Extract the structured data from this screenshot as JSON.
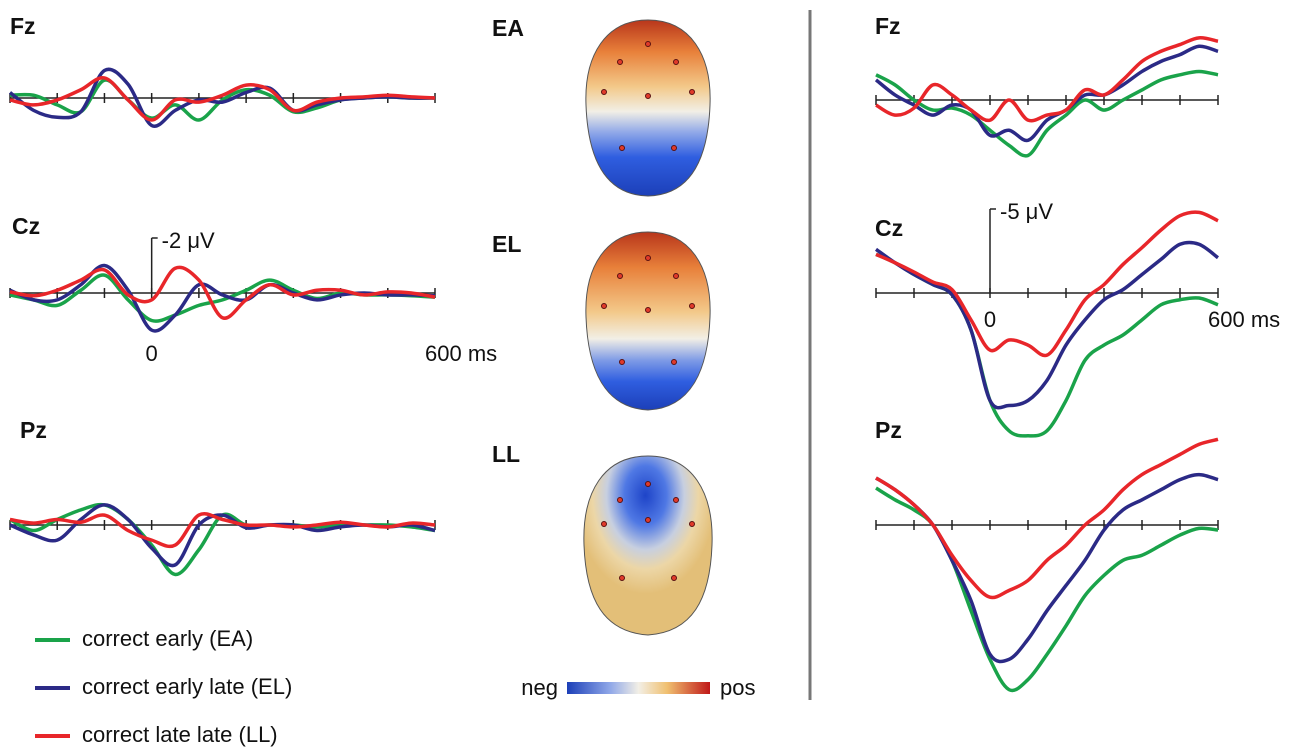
{
  "chart_data": [
    {
      "type": "line",
      "title": "Fz",
      "x": [
        -300,
        -250,
        -200,
        -150,
        -100,
        -50,
        0,
        50,
        100,
        150,
        200,
        250,
        300,
        350,
        400,
        450,
        500,
        550,
        600
      ],
      "xlim": [
        -300,
        600
      ],
      "xticks": [
        -300,
        -200,
        -100,
        0,
        100,
        200,
        300,
        400,
        500,
        600
      ],
      "ylim": [
        -3,
        3
      ],
      "y_inverted": true,
      "series": [
        {
          "name": "correct early (EA)",
          "color": "#1aa34a",
          "values": [
            -0.1,
            -0.1,
            0.25,
            0.5,
            -0.65,
            0.07,
            0.73,
            0.25,
            0.8,
            0.07,
            -0.3,
            -0.1,
            0.5,
            0.36,
            0.07,
            0,
            -0.04,
            0,
            0
          ]
        },
        {
          "name": "correct early late (EL)",
          "color": "#2b2a86",
          "values": [
            -0.2,
            0.45,
            0.7,
            0.5,
            -1.0,
            -0.5,
            1.0,
            0.45,
            0.07,
            0.15,
            -0.2,
            -0.36,
            0.45,
            0.25,
            0.07,
            0,
            -0.04,
            0,
            0
          ]
        },
        {
          "name": "correct late late (LL)",
          "color": "#e8262a",
          "values": [
            0.07,
            0.25,
            0.07,
            -0.3,
            -0.73,
            0.07,
            0.8,
            0.07,
            0.15,
            -0.1,
            -0.47,
            -0.3,
            0.45,
            0.15,
            0,
            -0.04,
            -0.1,
            -0.04,
            0
          ]
        }
      ]
    },
    {
      "type": "line",
      "title": "Cz",
      "x": [
        -300,
        -250,
        -200,
        -150,
        -100,
        -50,
        0,
        50,
        100,
        150,
        200,
        250,
        300,
        350,
        400,
        450,
        500,
        550,
        600
      ],
      "xlim": [
        -300,
        600
      ],
      "xticks": [
        -300,
        -200,
        -100,
        0,
        100,
        200,
        300,
        400,
        500,
        600
      ],
      "xtick_labels": [
        0,
        {
          "value": 600,
          "label": "600 ms"
        }
      ],
      "scale_bar": {
        "value": -2,
        "label": "-2 μV"
      },
      "ylim": [
        -3,
        3
      ],
      "y_inverted": true,
      "series": [
        {
          "color": "#1aa34a",
          "values": [
            0.07,
            0.25,
            0.45,
            -0.1,
            -0.65,
            0.25,
            1.0,
            0.8,
            0.45,
            0.25,
            -0.1,
            -0.47,
            -0.1,
            0.2,
            0,
            0.07,
            0.07,
            0.1,
            0.15
          ]
        },
        {
          "color": "#2b2a86",
          "values": [
            -0.1,
            0.25,
            0.25,
            -0.3,
            -1.0,
            -0.1,
            1.35,
            0.8,
            -0.3,
            0.07,
            0.25,
            -0.3,
            0,
            0.25,
            0.07,
            0,
            0.07,
            0.07,
            0.1
          ]
        },
        {
          "color": "#e8262a",
          "values": [
            -0.04,
            0.1,
            -0.1,
            -0.47,
            -0.84,
            0.07,
            0.25,
            -0.9,
            -0.47,
            0.9,
            0.25,
            -0.3,
            0.07,
            -0.1,
            -0.1,
            0.07,
            -0.04,
            0,
            0.15
          ]
        }
      ]
    },
    {
      "type": "line",
      "title": "Pz",
      "x": [
        -300,
        -250,
        -200,
        -150,
        -100,
        -50,
        0,
        50,
        100,
        150,
        200,
        250,
        300,
        350,
        400,
        450,
        500,
        550,
        600
      ],
      "xlim": [
        -300,
        600
      ],
      "xticks": [
        -300,
        -200,
        -100,
        0,
        100,
        200,
        300,
        400,
        500,
        600
      ],
      "ylim": [
        -3,
        3
      ],
      "y_inverted": true,
      "series": [
        {
          "color": "#1aa34a",
          "values": [
            -0.2,
            0.2,
            -0.2,
            -0.55,
            -0.73,
            -0.2,
            0.73,
            1.8,
            0.9,
            -0.36,
            0,
            0,
            0,
            0.07,
            0,
            0,
            0,
            0.07,
            0.2
          ]
        },
        {
          "color": "#2b2a86",
          "values": [
            0,
            0.36,
            0.55,
            -0.2,
            -0.73,
            -0.2,
            0.84,
            1.45,
            0,
            -0.36,
            0.1,
            0,
            0,
            0.2,
            0.07,
            0,
            0.07,
            0,
            0.2
          ]
        },
        {
          "color": "#e8262a",
          "values": [
            -0.2,
            -0.07,
            -0.2,
            -0.1,
            -0.36,
            0.2,
            0.55,
            0.73,
            -0.36,
            -0.2,
            0,
            0,
            0.07,
            0,
            -0.1,
            0,
            0.07,
            -0.07,
            0
          ]
        }
      ]
    },
    {
      "type": "line",
      "title": "Fz",
      "x": [
        -300,
        -250,
        -200,
        -150,
        -100,
        -50,
        0,
        50,
        100,
        150,
        200,
        250,
        300,
        350,
        400,
        450,
        500,
        550,
        600
      ],
      "xlim": [
        -300,
        600
      ],
      "xticks": [
        -300,
        -200,
        -100,
        0,
        100,
        200,
        300,
        400,
        500,
        600
      ],
      "ylim": [
        -5.5,
        11
      ],
      "y_inverted": true,
      "series": [
        {
          "color": "#1aa34a",
          "values": [
            -1.5,
            -0.9,
            0,
            0.6,
            0.48,
            0.9,
            1.8,
            2.7,
            3.3,
            1.8,
            0.9,
            0,
            0.6,
            0,
            -0.6,
            -1.2,
            -1.5,
            -1.7,
            -1.5
          ]
        },
        {
          "color": "#2b2a86",
          "values": [
            -1.2,
            -0.3,
            0.3,
            0.9,
            0.3,
            0.6,
            2.1,
            1.8,
            2.4,
            1.2,
            0.6,
            -0.3,
            -0.3,
            -0.9,
            -1.7,
            -2.3,
            -2.7,
            -3.2,
            -2.9
          ]
        },
        {
          "color": "#e8262a",
          "values": [
            0.3,
            0.9,
            0.48,
            -0.9,
            -0.3,
            0.6,
            1.2,
            0,
            1.2,
            0.9,
            0.6,
            -0.6,
            -0.3,
            -1.2,
            -2.3,
            -2.9,
            -3.3,
            -3.7,
            -3.5
          ]
        }
      ]
    },
    {
      "type": "line",
      "title": "Cz",
      "x": [
        -300,
        -250,
        -200,
        -150,
        -100,
        -50,
        0,
        50,
        100,
        150,
        200,
        250,
        300,
        350,
        400,
        450,
        500,
        550,
        600
      ],
      "xlim": [
        -300,
        600
      ],
      "xticks": [
        -300,
        -200,
        -100,
        0,
        100,
        200,
        300,
        400,
        500,
        600
      ],
      "xtick_labels": [
        0,
        {
          "value": 600,
          "label": "600 ms"
        }
      ],
      "scale_bar": {
        "value": -5,
        "label": "-5 μV"
      },
      "ylim": [
        -5.5,
        11
      ],
      "y_inverted": true,
      "series": [
        {
          "color": "#1aa34a",
          "values": [
            -2.3,
            -1.8,
            -1.1,
            -0.5,
            0.1,
            2.2,
            6.4,
            8.2,
            8.5,
            8.2,
            6.4,
            4.0,
            3.1,
            2.5,
            1.6,
            0.7,
            0.4,
            0.3,
            0.7
          ]
        },
        {
          "color": "#2b2a86",
          "values": [
            -2.6,
            -1.8,
            -1.1,
            -0.5,
            0.1,
            2.2,
            6.4,
            6.7,
            6.4,
            5.2,
            3.1,
            1.6,
            0.4,
            -0.2,
            -1.1,
            -2.0,
            -2.9,
            -2.9,
            -2.1
          ]
        },
        {
          "color": "#e8262a",
          "values": [
            -2.3,
            -1.8,
            -1.25,
            -0.65,
            -0.2,
            1.6,
            3.4,
            2.8,
            3.1,
            3.7,
            2.2,
            0.4,
            -0.5,
            -1.7,
            -2.7,
            -3.75,
            -4.6,
            -4.8,
            -4.3
          ]
        }
      ]
    },
    {
      "type": "line",
      "title": "Pz",
      "x": [
        -300,
        -250,
        -200,
        -150,
        -100,
        -50,
        0,
        50,
        100,
        150,
        200,
        250,
        300,
        350,
        400,
        450,
        500,
        550,
        600
      ],
      "xlim": [
        -300,
        600
      ],
      "xticks": [
        -300,
        -200,
        -100,
        0,
        100,
        200,
        300,
        400,
        500,
        600
      ],
      "ylim": [
        -5.5,
        11
      ],
      "y_inverted": true,
      "series": [
        {
          "color": "#1aa34a",
          "values": [
            -2.2,
            -1.5,
            -0.9,
            0,
            2.1,
            5.1,
            8.0,
            9.8,
            9.2,
            7.7,
            6.0,
            4.2,
            3.0,
            2.1,
            1.8,
            1.2,
            0.6,
            0.2,
            0.3
          ]
        },
        {
          "color": "#2b2a86",
          "values": [
            -2.8,
            -2.1,
            -1.2,
            0,
            2.1,
            4.5,
            7.7,
            8.0,
            6.8,
            5.1,
            3.6,
            2.1,
            0.3,
            -0.9,
            -1.5,
            -2.1,
            -2.7,
            -3.0,
            -2.7
          ]
        },
        {
          "color": "#e8262a",
          "values": [
            -2.8,
            -2.1,
            -1.2,
            0,
            1.8,
            3.3,
            4.3,
            3.9,
            3.3,
            2.1,
            1.2,
            0,
            -0.9,
            -2.1,
            -3.0,
            -3.6,
            -4.2,
            -4.8,
            -5.1
          ]
        }
      ]
    }
  ],
  "topomaps": {
    "labels": [
      "EA",
      "EL",
      "LL"
    ],
    "scale": {
      "neg": "neg",
      "pos": "pos"
    }
  }
}
